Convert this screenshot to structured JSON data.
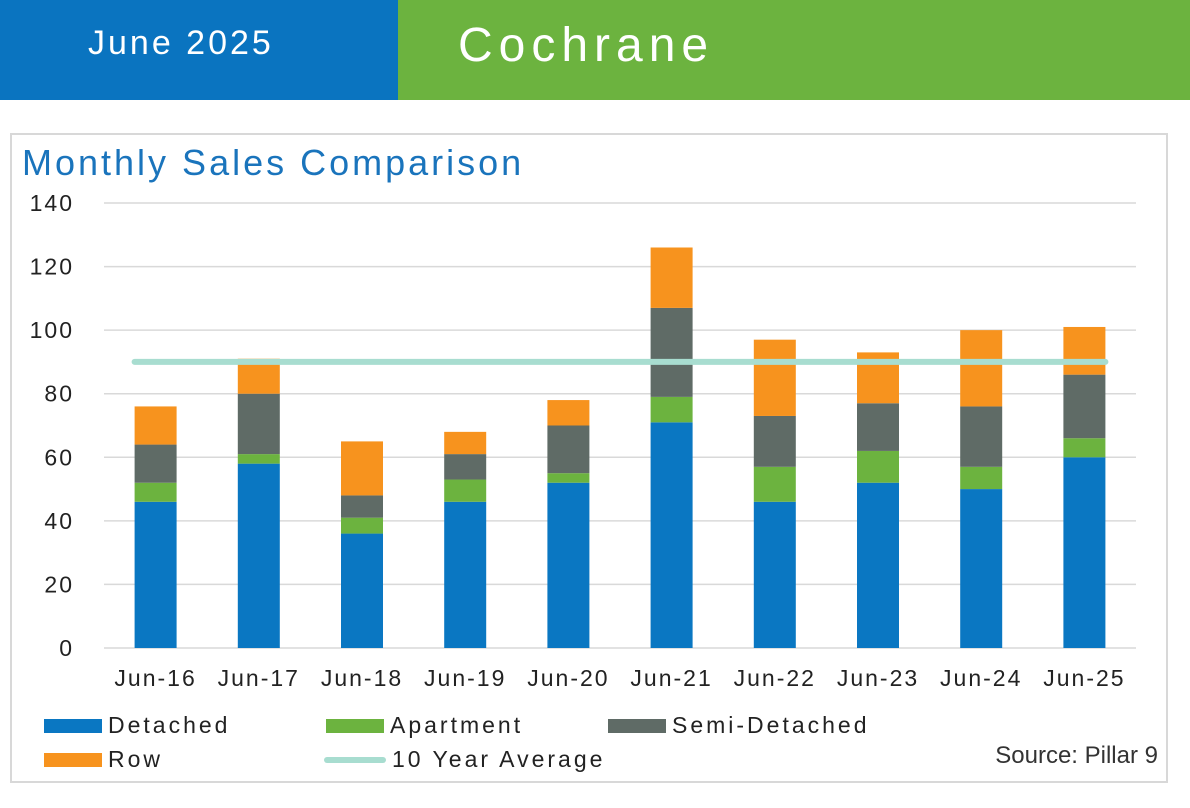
{
  "header": {
    "date": "June 2025",
    "city": "Cochrane"
  },
  "source": "Source: Pillar 9",
  "colors": {
    "detached": "#0a77c2",
    "apartment": "#6cb33f",
    "semi": "#5f6b66",
    "row": "#f7931e",
    "average": "#a8ddd0"
  },
  "chart_data": {
    "type": "bar",
    "stacked": true,
    "title": "Monthly Sales Comparison",
    "categories": [
      "Jun-16",
      "Jun-17",
      "Jun-18",
      "Jun-19",
      "Jun-20",
      "Jun-21",
      "Jun-22",
      "Jun-23",
      "Jun-24",
      "Jun-25"
    ],
    "series": [
      {
        "name": "Detached",
        "values": [
          46,
          58,
          36,
          46,
          52,
          71,
          46,
          52,
          50,
          60
        ]
      },
      {
        "name": "Apartment",
        "values": [
          6,
          3,
          5,
          7,
          3,
          8,
          11,
          10,
          7,
          6
        ]
      },
      {
        "name": "Semi-Detached",
        "values": [
          12,
          19,
          7,
          8,
          15,
          28,
          16,
          15,
          19,
          20
        ]
      },
      {
        "name": "Row",
        "values": [
          12,
          11,
          17,
          7,
          8,
          19,
          24,
          16,
          24,
          15
        ]
      }
    ],
    "average": {
      "name": "10 Year Average",
      "value": 90
    },
    "ylim": [
      0,
      140
    ],
    "yticks": [
      "0",
      "20",
      "40",
      "60",
      "80",
      "100",
      "120",
      "140"
    ],
    "grid": true,
    "legend_position": "bottom"
  }
}
